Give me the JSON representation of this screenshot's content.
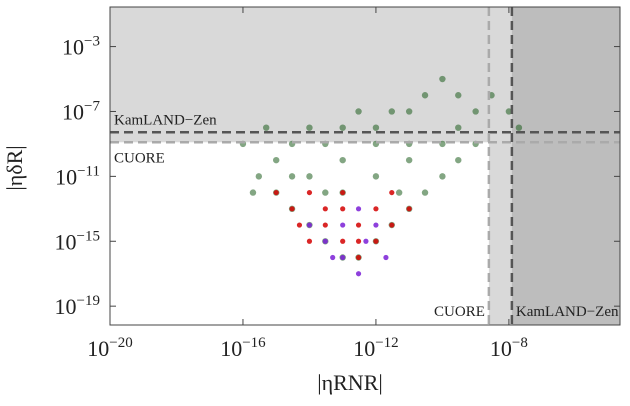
{
  "chart_data": {
    "type": "scatter",
    "log_x": true,
    "log_y": true,
    "x_label": "|ηRNR|",
    "y_label": "|ηδR|",
    "xlim": [
      1e-20,
      2.2e-05
    ],
    "ylim": [
      6.9e-21,
      0.275
    ],
    "xticks": [
      {
        "value": 1e-20,
        "label": "10−20"
      },
      {
        "value": 1e-16,
        "label": "10−16"
      },
      {
        "value": 1e-12,
        "label": "10−12"
      },
      {
        "value": 1e-08,
        "label": "10−8"
      }
    ],
    "yticks": [
      {
        "value": 0.001,
        "label": "10−3"
      },
      {
        "value": 1e-07,
        "label": "10−7"
      },
      {
        "value": 1e-11,
        "label": "10−11"
      },
      {
        "value": 1e-15,
        "label": "10−15"
      },
      {
        "value": 1e-19,
        "label": "10−19"
      }
    ],
    "limits": [
      {
        "label": "KamLAND−Zen",
        "axis": "y",
        "value": 5.2e-09,
        "color": "#555555"
      },
      {
        "label": "CUORE",
        "axis": "y",
        "value": 1.26e-09,
        "color": "#aaaaaa"
      },
      {
        "label": "CUORE",
        "axis": "x",
        "value": 2.5e-09,
        "color": "#aaaaaa"
      },
      {
        "label": "KamLAND−Zen",
        "axis": "x",
        "value": 1.23e-08,
        "color": "#555555"
      }
    ],
    "series": [
      {
        "color": "#1d5c1d",
        "x": [
          1e-16,
          3e-16,
          1e-15,
          3e-15,
          1e-14,
          3e-14,
          1e-13,
          3e-13,
          1e-12,
          3e-12,
          1e-11,
          3e-11,
          1e-10,
          3e-10,
          1e-09,
          3e-09,
          1e-09,
          3e-10,
          1e-10,
          3e-11,
          1e-11,
          3e-12,
          1e-12,
          3e-13,
          1e-13,
          3e-14,
          1e-14,
          3e-15,
          1e-15,
          2e-16,
          1e-14,
          1e-13,
          1e-12,
          1e-11,
          1e-10,
          1e-13,
          1e-12,
          1e-11,
          3e-15,
          3e-14,
          5e-12,
          3e-10,
          1e-08,
          2e-08,
          5e-16
        ],
        "values": [
          1e-09,
          1e-11,
          1e-10,
          1e-09,
          1e-08,
          1e-09,
          1e-08,
          1e-07,
          1e-08,
          1e-07,
          1e-07,
          1e-06,
          1e-05,
          1e-06,
          1e-07,
          1e-06,
          1e-09,
          1e-10,
          1e-11,
          1e-12,
          1e-13,
          1e-14,
          1e-15,
          1e-16,
          1e-16,
          1e-15,
          1e-14,
          1e-13,
          1e-12,
          1e-12,
          1e-11,
          1e-12,
          1e-11,
          1e-10,
          1e-09,
          1e-10,
          1e-09,
          1e-09,
          1e-11,
          1e-12,
          1e-12,
          1e-08,
          1e-07,
          1e-08,
          1e-08
        ]
      },
      {
        "color": "#d40000",
        "x": [
          1e-15,
          3e-15,
          1e-14,
          3e-14,
          1e-13,
          3e-13,
          1e-12,
          3e-12,
          1e-14,
          3e-13,
          1e-13,
          3e-12,
          1e-11,
          3e-14,
          1e-13,
          3e-13,
          5e-15,
          1e-12
        ],
        "values": [
          1e-12,
          1e-13,
          1e-12,
          1e-14,
          1e-13,
          1e-14,
          1e-13,
          1e-14,
          1e-15,
          1e-15,
          1e-15,
          1e-12,
          1e-13,
          1e-13,
          1e-12,
          1e-16,
          1e-14,
          1e-15
        ]
      },
      {
        "color": "#7a1fd6",
        "x": [
          1e-14,
          3e-14,
          1e-13,
          3e-13,
          1e-12,
          3e-13,
          1e-13,
          5e-13,
          5e-14,
          2e-12
        ],
        "values": [
          1e-14,
          1e-15,
          1e-14,
          1e-13,
          1e-14,
          1e-17,
          1e-16,
          1e-15,
          1e-16,
          1e-16
        ]
      }
    ]
  }
}
